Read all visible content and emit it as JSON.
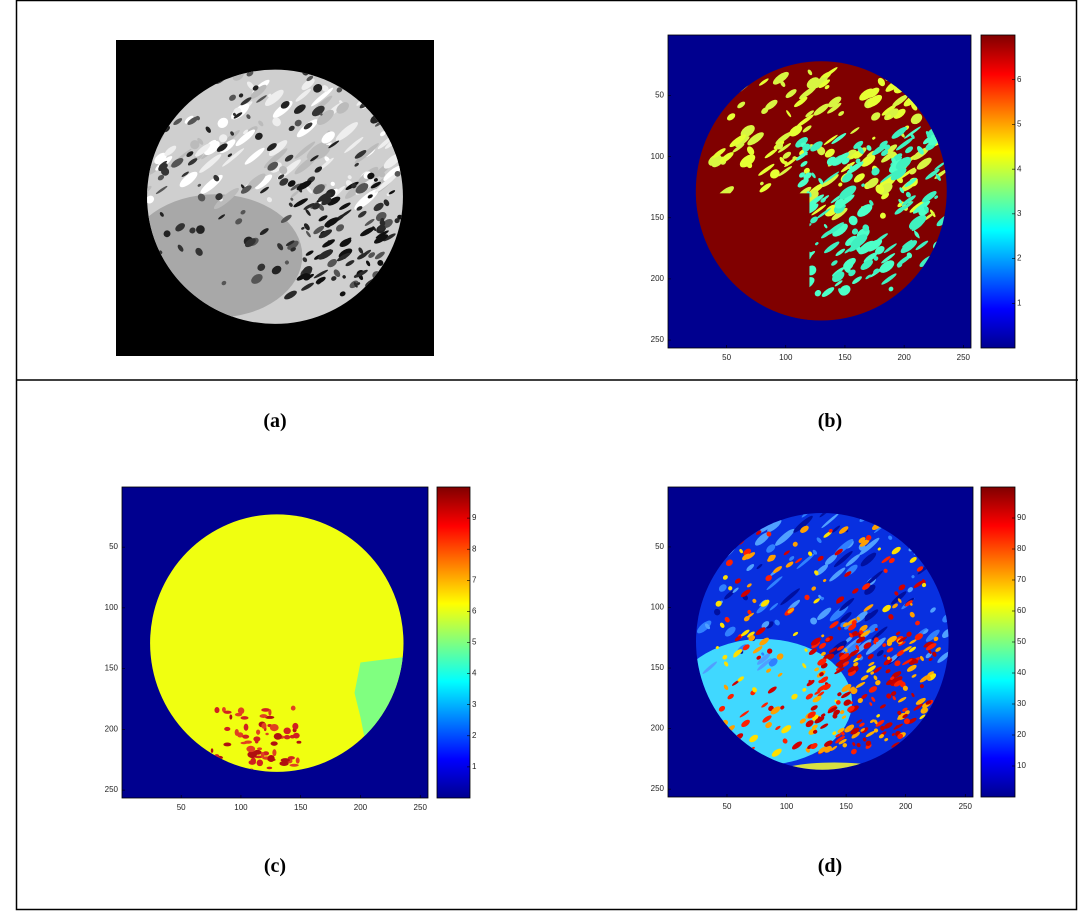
{
  "panels": [
    {
      "label": "(a)"
    },
    {
      "label": "(b)",
      "xticks": [
        50,
        100,
        150,
        200,
        250
      ],
      "yticks": [
        50,
        100,
        150,
        200,
        250
      ],
      "range": [
        0.5,
        256.5
      ],
      "colorbar_ticks": [
        1,
        2,
        3,
        4,
        5,
        6
      ],
      "colorbar_range": [
        0,
        7
      ]
    },
    {
      "label": "(c)",
      "xticks": [
        50,
        100,
        150,
        200,
        250
      ],
      "yticks": [
        50,
        100,
        150,
        200,
        250
      ],
      "range": [
        0.5,
        256.5
      ],
      "colorbar_ticks": [
        1,
        2,
        3,
        4,
        5,
        6,
        7,
        8,
        9
      ],
      "colorbar_range": [
        0,
        10
      ]
    },
    {
      "label": "(d)",
      "xticks": [
        50,
        100,
        150,
        200,
        250
      ],
      "yticks": [
        50,
        100,
        150,
        200,
        250
      ],
      "range": [
        0.5,
        256.5
      ],
      "colorbar_ticks": [
        10,
        20,
        30,
        40,
        50,
        60,
        70,
        80,
        90
      ],
      "colorbar_range": [
        0,
        100
      ]
    }
  ]
}
